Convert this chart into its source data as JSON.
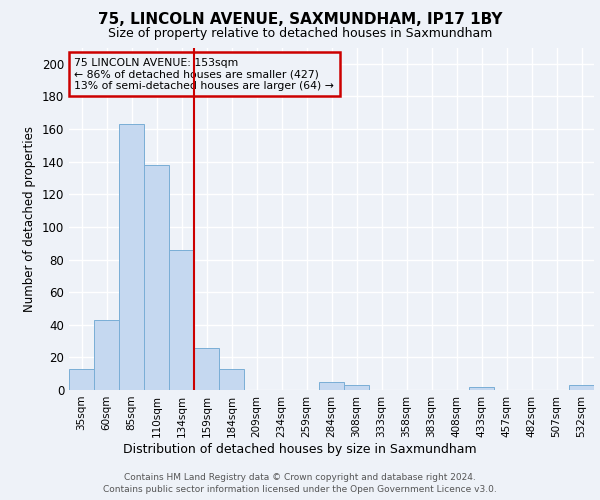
{
  "title1": "75, LINCOLN AVENUE, SAXMUNDHAM, IP17 1BY",
  "title2": "Size of property relative to detached houses in Saxmundham",
  "xlabel": "Distribution of detached houses by size in Saxmundham",
  "ylabel": "Number of detached properties",
  "footnote1": "Contains HM Land Registry data © Crown copyright and database right 2024.",
  "footnote2": "Contains public sector information licensed under the Open Government Licence v3.0.",
  "categories": [
    "35sqm",
    "60sqm",
    "85sqm",
    "110sqm",
    "134sqm",
    "159sqm",
    "184sqm",
    "209sqm",
    "234sqm",
    "259sqm",
    "284sqm",
    "308sqm",
    "333sqm",
    "358sqm",
    "383sqm",
    "408sqm",
    "433sqm",
    "457sqm",
    "482sqm",
    "507sqm",
    "532sqm"
  ],
  "values": [
    13,
    43,
    163,
    138,
    86,
    26,
    13,
    0,
    0,
    0,
    5,
    3,
    0,
    0,
    0,
    0,
    2,
    0,
    0,
    0,
    3
  ],
  "bar_color": "#c5d8f0",
  "bar_edge_color": "#7aaed6",
  "ylim": [
    0,
    210
  ],
  "yticks": [
    0,
    20,
    40,
    60,
    80,
    100,
    120,
    140,
    160,
    180,
    200
  ],
  "property_line_x": 4.5,
  "property_line_color": "#cc0000",
  "annotation_line1": "75 LINCOLN AVENUE: 153sqm",
  "annotation_line2": "← 86% of detached houses are smaller (427)",
  "annotation_line3": "13% of semi-detached houses are larger (64) →",
  "annotation_box_color": "#cc0000",
  "background_color": "#eef2f8",
  "grid_color": "#ffffff"
}
